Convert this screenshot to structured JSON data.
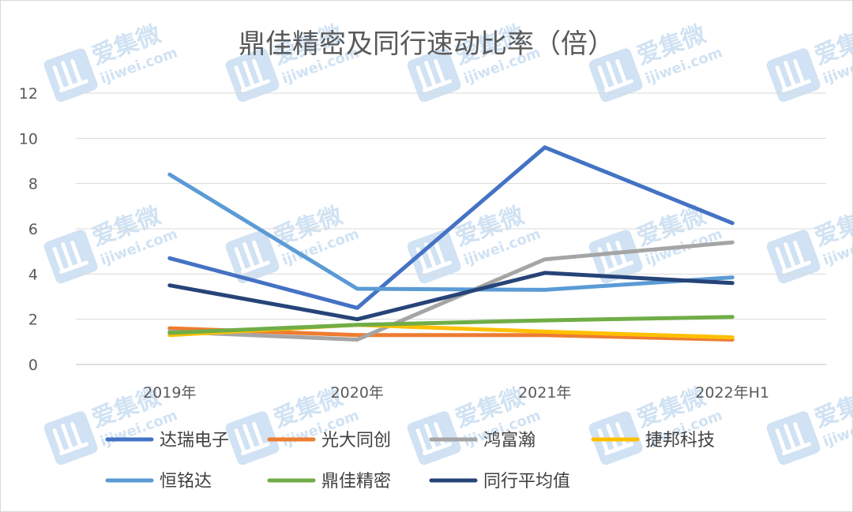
{
  "watermark": {
    "brand_cn": "爱集微",
    "brand_url": "ijiwei.com",
    "color": "#5b9bd5"
  },
  "chart_data": {
    "type": "line",
    "title": "鼎佳精密及同行速动比率（倍）",
    "xlabel": "",
    "ylabel": "",
    "categories": [
      "2019年",
      "2020年",
      "2021年",
      "2022年H1"
    ],
    "ylim": [
      0,
      12
    ],
    "yticks": [
      0,
      2,
      4,
      6,
      8,
      10,
      12
    ],
    "grid": true,
    "legend_position": "bottom",
    "series": [
      {
        "name": "达瑞电子",
        "color": "#4472c4",
        "values": [
          4.7,
          2.5,
          9.6,
          6.25
        ]
      },
      {
        "name": "光大同创",
        "color": "#ed7d31",
        "values": [
          1.6,
          1.3,
          1.3,
          1.1
        ]
      },
      {
        "name": "鸿富瀚",
        "color": "#a5a5a5",
        "values": [
          1.45,
          1.1,
          4.65,
          5.4
        ]
      },
      {
        "name": "捷邦科技",
        "color": "#ffc000",
        "values": [
          1.3,
          1.75,
          1.45,
          1.2
        ]
      },
      {
        "name": "恒铭达",
        "color": "#5b9bd5",
        "values": [
          8.4,
          3.35,
          3.3,
          3.85
        ]
      },
      {
        "name": "鼎佳精密",
        "color": "#70ad47",
        "values": [
          1.4,
          1.75,
          1.95,
          2.1
        ]
      },
      {
        "name": "同行平均值",
        "color": "#264478",
        "values": [
          3.5,
          2.0,
          4.05,
          3.6
        ]
      }
    ]
  }
}
